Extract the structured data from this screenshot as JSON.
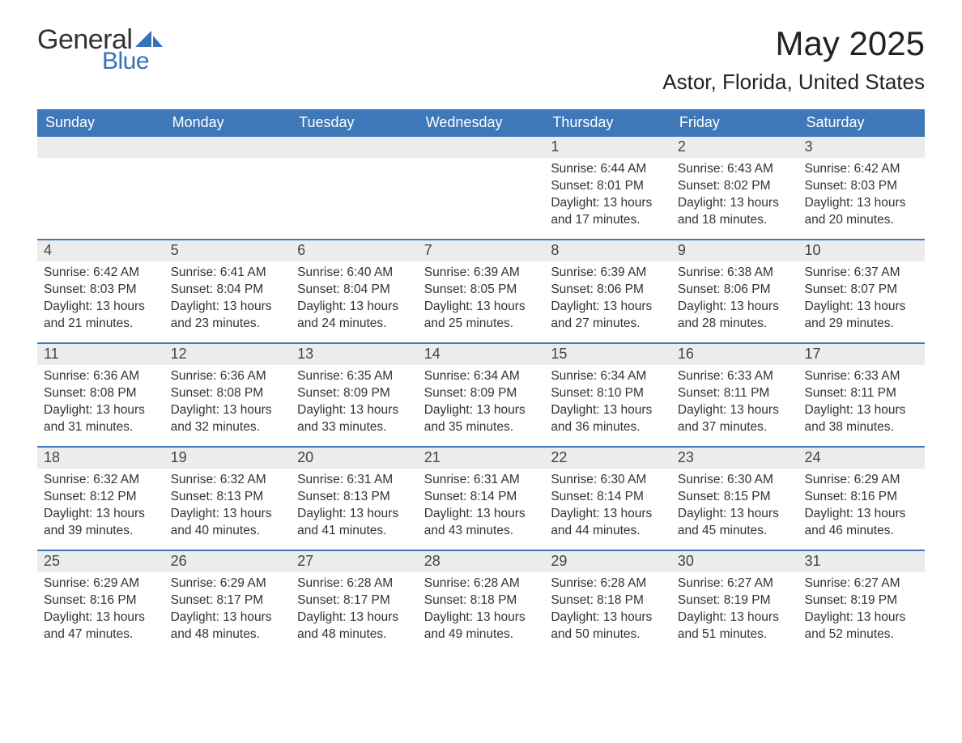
{
  "logo": {
    "word1": "General",
    "word2": "Blue",
    "sail_color": "#3473b8",
    "text_color": "#333333"
  },
  "header": {
    "month_title": "May 2025",
    "location": "Astor, Florida, United States"
  },
  "calendar": {
    "header_bg": "#3e78b9",
    "header_fg": "#ffffff",
    "daynum_bg": "#ececec",
    "rule_color": "#3e78b9",
    "dow": [
      "Sunday",
      "Monday",
      "Tuesday",
      "Wednesday",
      "Thursday",
      "Friday",
      "Saturday"
    ],
    "leading_blanks": 4,
    "days": [
      {
        "n": "1",
        "sunrise": "Sunrise: 6:44 AM",
        "sunset": "Sunset: 8:01 PM",
        "dl1": "Daylight: 13 hours",
        "dl2": "and 17 minutes."
      },
      {
        "n": "2",
        "sunrise": "Sunrise: 6:43 AM",
        "sunset": "Sunset: 8:02 PM",
        "dl1": "Daylight: 13 hours",
        "dl2": "and 18 minutes."
      },
      {
        "n": "3",
        "sunrise": "Sunrise: 6:42 AM",
        "sunset": "Sunset: 8:03 PM",
        "dl1": "Daylight: 13 hours",
        "dl2": "and 20 minutes."
      },
      {
        "n": "4",
        "sunrise": "Sunrise: 6:42 AM",
        "sunset": "Sunset: 8:03 PM",
        "dl1": "Daylight: 13 hours",
        "dl2": "and 21 minutes."
      },
      {
        "n": "5",
        "sunrise": "Sunrise: 6:41 AM",
        "sunset": "Sunset: 8:04 PM",
        "dl1": "Daylight: 13 hours",
        "dl2": "and 23 minutes."
      },
      {
        "n": "6",
        "sunrise": "Sunrise: 6:40 AM",
        "sunset": "Sunset: 8:04 PM",
        "dl1": "Daylight: 13 hours",
        "dl2": "and 24 minutes."
      },
      {
        "n": "7",
        "sunrise": "Sunrise: 6:39 AM",
        "sunset": "Sunset: 8:05 PM",
        "dl1": "Daylight: 13 hours",
        "dl2": "and 25 minutes."
      },
      {
        "n": "8",
        "sunrise": "Sunrise: 6:39 AM",
        "sunset": "Sunset: 8:06 PM",
        "dl1": "Daylight: 13 hours",
        "dl2": "and 27 minutes."
      },
      {
        "n": "9",
        "sunrise": "Sunrise: 6:38 AM",
        "sunset": "Sunset: 8:06 PM",
        "dl1": "Daylight: 13 hours",
        "dl2": "and 28 minutes."
      },
      {
        "n": "10",
        "sunrise": "Sunrise: 6:37 AM",
        "sunset": "Sunset: 8:07 PM",
        "dl1": "Daylight: 13 hours",
        "dl2": "and 29 minutes."
      },
      {
        "n": "11",
        "sunrise": "Sunrise: 6:36 AM",
        "sunset": "Sunset: 8:08 PM",
        "dl1": "Daylight: 13 hours",
        "dl2": "and 31 minutes."
      },
      {
        "n": "12",
        "sunrise": "Sunrise: 6:36 AM",
        "sunset": "Sunset: 8:08 PM",
        "dl1": "Daylight: 13 hours",
        "dl2": "and 32 minutes."
      },
      {
        "n": "13",
        "sunrise": "Sunrise: 6:35 AM",
        "sunset": "Sunset: 8:09 PM",
        "dl1": "Daylight: 13 hours",
        "dl2": "and 33 minutes."
      },
      {
        "n": "14",
        "sunrise": "Sunrise: 6:34 AM",
        "sunset": "Sunset: 8:09 PM",
        "dl1": "Daylight: 13 hours",
        "dl2": "and 35 minutes."
      },
      {
        "n": "15",
        "sunrise": "Sunrise: 6:34 AM",
        "sunset": "Sunset: 8:10 PM",
        "dl1": "Daylight: 13 hours",
        "dl2": "and 36 minutes."
      },
      {
        "n": "16",
        "sunrise": "Sunrise: 6:33 AM",
        "sunset": "Sunset: 8:11 PM",
        "dl1": "Daylight: 13 hours",
        "dl2": "and 37 minutes."
      },
      {
        "n": "17",
        "sunrise": "Sunrise: 6:33 AM",
        "sunset": "Sunset: 8:11 PM",
        "dl1": "Daylight: 13 hours",
        "dl2": "and 38 minutes."
      },
      {
        "n": "18",
        "sunrise": "Sunrise: 6:32 AM",
        "sunset": "Sunset: 8:12 PM",
        "dl1": "Daylight: 13 hours",
        "dl2": "and 39 minutes."
      },
      {
        "n": "19",
        "sunrise": "Sunrise: 6:32 AM",
        "sunset": "Sunset: 8:13 PM",
        "dl1": "Daylight: 13 hours",
        "dl2": "and 40 minutes."
      },
      {
        "n": "20",
        "sunrise": "Sunrise: 6:31 AM",
        "sunset": "Sunset: 8:13 PM",
        "dl1": "Daylight: 13 hours",
        "dl2": "and 41 minutes."
      },
      {
        "n": "21",
        "sunrise": "Sunrise: 6:31 AM",
        "sunset": "Sunset: 8:14 PM",
        "dl1": "Daylight: 13 hours",
        "dl2": "and 43 minutes."
      },
      {
        "n": "22",
        "sunrise": "Sunrise: 6:30 AM",
        "sunset": "Sunset: 8:14 PM",
        "dl1": "Daylight: 13 hours",
        "dl2": "and 44 minutes."
      },
      {
        "n": "23",
        "sunrise": "Sunrise: 6:30 AM",
        "sunset": "Sunset: 8:15 PM",
        "dl1": "Daylight: 13 hours",
        "dl2": "and 45 minutes."
      },
      {
        "n": "24",
        "sunrise": "Sunrise: 6:29 AM",
        "sunset": "Sunset: 8:16 PM",
        "dl1": "Daylight: 13 hours",
        "dl2": "and 46 minutes."
      },
      {
        "n": "25",
        "sunrise": "Sunrise: 6:29 AM",
        "sunset": "Sunset: 8:16 PM",
        "dl1": "Daylight: 13 hours",
        "dl2": "and 47 minutes."
      },
      {
        "n": "26",
        "sunrise": "Sunrise: 6:29 AM",
        "sunset": "Sunset: 8:17 PM",
        "dl1": "Daylight: 13 hours",
        "dl2": "and 48 minutes."
      },
      {
        "n": "27",
        "sunrise": "Sunrise: 6:28 AM",
        "sunset": "Sunset: 8:17 PM",
        "dl1": "Daylight: 13 hours",
        "dl2": "and 48 minutes."
      },
      {
        "n": "28",
        "sunrise": "Sunrise: 6:28 AM",
        "sunset": "Sunset: 8:18 PM",
        "dl1": "Daylight: 13 hours",
        "dl2": "and 49 minutes."
      },
      {
        "n": "29",
        "sunrise": "Sunrise: 6:28 AM",
        "sunset": "Sunset: 8:18 PM",
        "dl1": "Daylight: 13 hours",
        "dl2": "and 50 minutes."
      },
      {
        "n": "30",
        "sunrise": "Sunrise: 6:27 AM",
        "sunset": "Sunset: 8:19 PM",
        "dl1": "Daylight: 13 hours",
        "dl2": "and 51 minutes."
      },
      {
        "n": "31",
        "sunrise": "Sunrise: 6:27 AM",
        "sunset": "Sunset: 8:19 PM",
        "dl1": "Daylight: 13 hours",
        "dl2": "and 52 minutes."
      }
    ]
  }
}
